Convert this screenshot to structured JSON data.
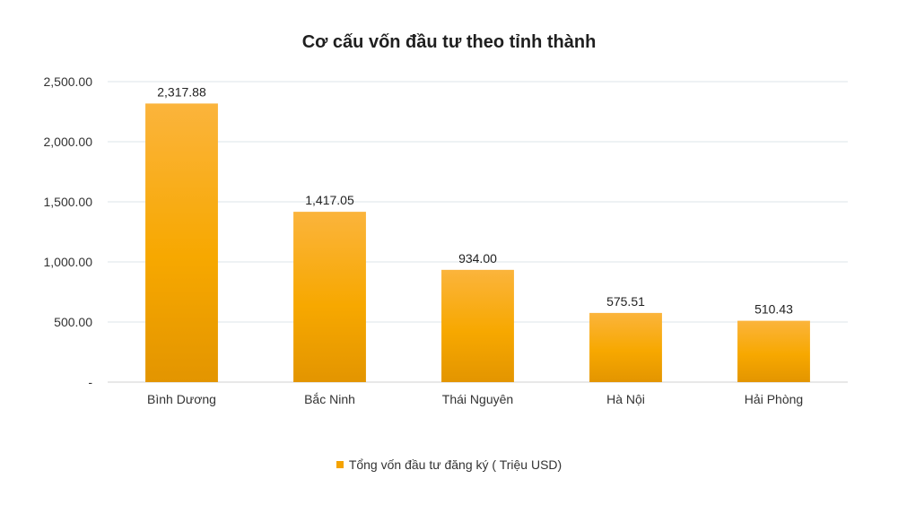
{
  "chart_data": {
    "type": "bar",
    "title": "Cơ cấu vốn đầu tư theo tỉnh thành",
    "categories": [
      "Bình Dương",
      "Bắc Ninh",
      "Thái Nguyên",
      "Hà Nội",
      "Hải Phòng"
    ],
    "series": [
      {
        "name": "Tổng vốn đầu tư đăng ký ( Triệu USD)",
        "values": [
          2317.88,
          1417.05,
          934.0,
          575.51,
          510.43
        ],
        "value_labels": [
          "2,317.88",
          "1,417.05",
          "934.00",
          "575.51",
          "510.43"
        ],
        "color": "#f5a300"
      }
    ],
    "yticks": [
      0,
      500,
      1000,
      1500,
      2000,
      2500
    ],
    "ytick_labels": [
      "-",
      "500.00",
      "1,000.00",
      "1,500.00",
      "2,000.00",
      "2,500.00"
    ],
    "ylim": [
      0,
      2500
    ],
    "grid": true,
    "legend_position": "bottom",
    "xlabel": "",
    "ylabel": ""
  }
}
